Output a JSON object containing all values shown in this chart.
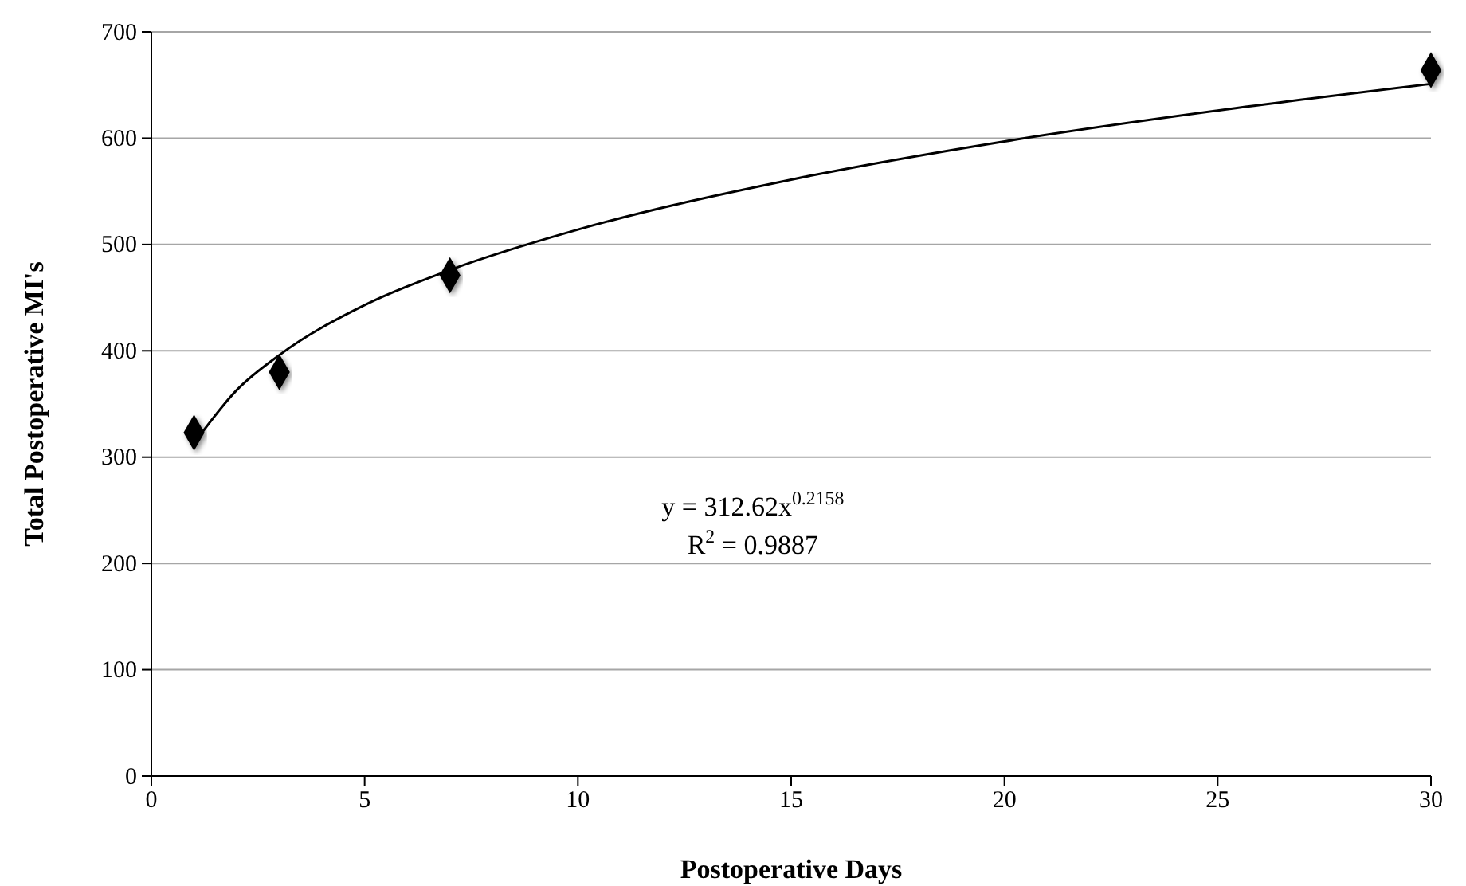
{
  "chart_data": {
    "type": "scatter",
    "xlabel": "Postoperative Days",
    "ylabel": "Total Postoperative MI's",
    "xlim": [
      0,
      30
    ],
    "xticks": [
      0,
      5,
      10,
      15,
      20,
      25,
      30
    ],
    "ylim": [
      0,
      700
    ],
    "yticks": [
      0,
      100,
      200,
      300,
      400,
      500,
      600,
      700
    ],
    "grid": "y",
    "series": [
      {
        "type": "line",
        "marker": "none",
        "color": "#000000",
        "x": [
          1,
          2,
          3,
          5,
          7,
          10,
          15,
          20,
          25,
          30
        ],
        "values": [
          313,
          363,
          396,
          443,
          476,
          514,
          561,
          597,
          626,
          651
        ]
      },
      {
        "marker": "diamond",
        "color": "#000000",
        "x": [
          1,
          3,
          7,
          30
        ],
        "values": [
          323,
          380,
          471,
          664
        ]
      }
    ],
    "annotations": [
      "y = 312.62x$^{0.2158}$",
      "R$^{2}$ = 0.9887"
    ]
  }
}
